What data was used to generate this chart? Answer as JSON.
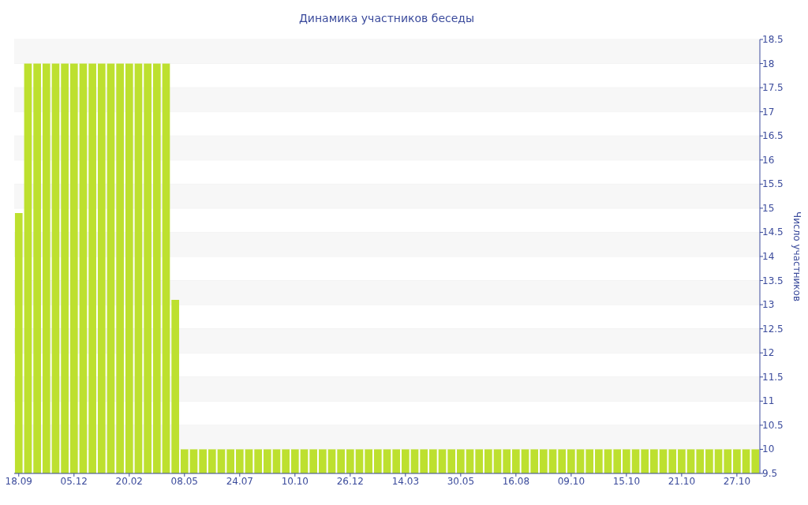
{
  "chart_data": {
    "type": "bar",
    "title": "Динамика участников беседы",
    "ylabel": "Число участников",
    "categories": [
      "18.09",
      null,
      null,
      null,
      null,
      null,
      "05.12",
      null,
      null,
      null,
      null,
      null,
      "20.02",
      null,
      null,
      null,
      null,
      null,
      "08.05",
      null,
      null,
      null,
      null,
      null,
      "24.07",
      null,
      null,
      null,
      null,
      null,
      "10.10",
      null,
      null,
      null,
      null,
      null,
      "26.12",
      null,
      null,
      null,
      null,
      null,
      "14.03",
      null,
      null,
      null,
      null,
      null,
      "30.05",
      null,
      null,
      null,
      null,
      null,
      "16.08",
      null,
      null,
      null,
      null,
      null,
      "09.10",
      null,
      null,
      null,
      null,
      null,
      "15.10",
      null,
      null,
      null,
      null,
      null,
      "21.10",
      null,
      null,
      null,
      null,
      null,
      "27.10",
      null,
      null
    ],
    "values": [
      14.9,
      18,
      18,
      18,
      18,
      18,
      18,
      18,
      18,
      18,
      18,
      18,
      18,
      18,
      18,
      18,
      18,
      13.1,
      10,
      10,
      10,
      10,
      10,
      10,
      10,
      10,
      10,
      10,
      10,
      10,
      10,
      10,
      10,
      10,
      10,
      10,
      10,
      10,
      10,
      10,
      10,
      10,
      10,
      10,
      10,
      10,
      10,
      10,
      10,
      10,
      10,
      10,
      10,
      10,
      10,
      10,
      10,
      10,
      10,
      10,
      10,
      10,
      10,
      10,
      10,
      10,
      10,
      10,
      10,
      10,
      10,
      10,
      10,
      10,
      10,
      10,
      10,
      10,
      10,
      10,
      10
    ],
    "color": "#bde02f",
    "ylim": [
      9.5,
      18.5
    ],
    "yticks": [
      9.5,
      10,
      10.5,
      11,
      11.5,
      12,
      12.5,
      13,
      13.5,
      14,
      14.5,
      15,
      15.5,
      16,
      16.5,
      17,
      17.5,
      18,
      18.5
    ],
    "grid": "y"
  }
}
